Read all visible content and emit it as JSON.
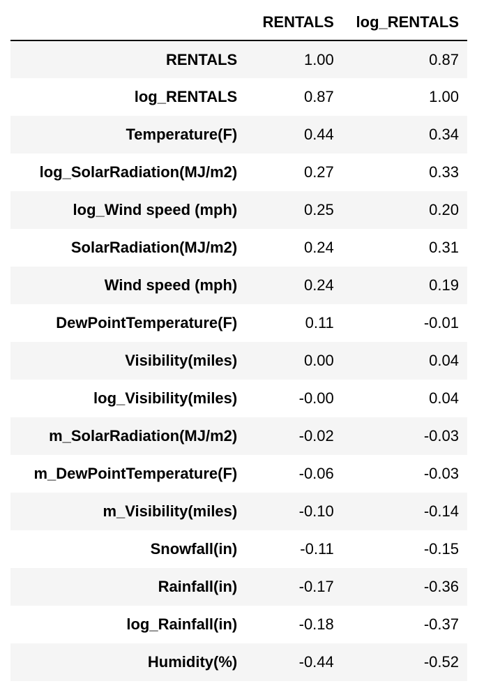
{
  "table": {
    "columns": [
      "RENTALS",
      "log_RENTALS"
    ],
    "rows": [
      {
        "label": "RENTALS",
        "values": [
          "1.00",
          "0.87"
        ]
      },
      {
        "label": "log_RENTALS",
        "values": [
          "0.87",
          "1.00"
        ]
      },
      {
        "label": "Temperature(F)",
        "values": [
          "0.44",
          "0.34"
        ]
      },
      {
        "label": "log_SolarRadiation(MJ/m2)",
        "values": [
          "0.27",
          "0.33"
        ]
      },
      {
        "label": "log_Wind speed (mph)",
        "values": [
          "0.25",
          "0.20"
        ]
      },
      {
        "label": "SolarRadiation(MJ/m2)",
        "values": [
          "0.24",
          "0.31"
        ]
      },
      {
        "label": "Wind speed (mph)",
        "values": [
          "0.24",
          "0.19"
        ]
      },
      {
        "label": "DewPointTemperature(F)",
        "values": [
          "0.11",
          "-0.01"
        ]
      },
      {
        "label": "Visibility(miles)",
        "values": [
          "0.00",
          "0.04"
        ]
      },
      {
        "label": "log_Visibility(miles)",
        "values": [
          "-0.00",
          "0.04"
        ]
      },
      {
        "label": "m_SolarRadiation(MJ/m2)",
        "values": [
          "-0.02",
          "-0.03"
        ]
      },
      {
        "label": "m_DewPointTemperature(F)",
        "values": [
          "-0.06",
          "-0.03"
        ]
      },
      {
        "label": "m_Visibility(miles)",
        "values": [
          "-0.10",
          "-0.14"
        ]
      },
      {
        "label": "Snowfall(in)",
        "values": [
          "-0.11",
          "-0.15"
        ]
      },
      {
        "label": "Rainfall(in)",
        "values": [
          "-0.17",
          "-0.36"
        ]
      },
      {
        "label": "log_Rainfall(in)",
        "values": [
          "-0.18",
          "-0.37"
        ]
      },
      {
        "label": "Humidity(%)",
        "values": [
          "-0.44",
          "-0.52"
        ]
      }
    ]
  },
  "colors": {
    "stripe": "#f5f5f5",
    "background": "#ffffff",
    "text": "#000000"
  }
}
